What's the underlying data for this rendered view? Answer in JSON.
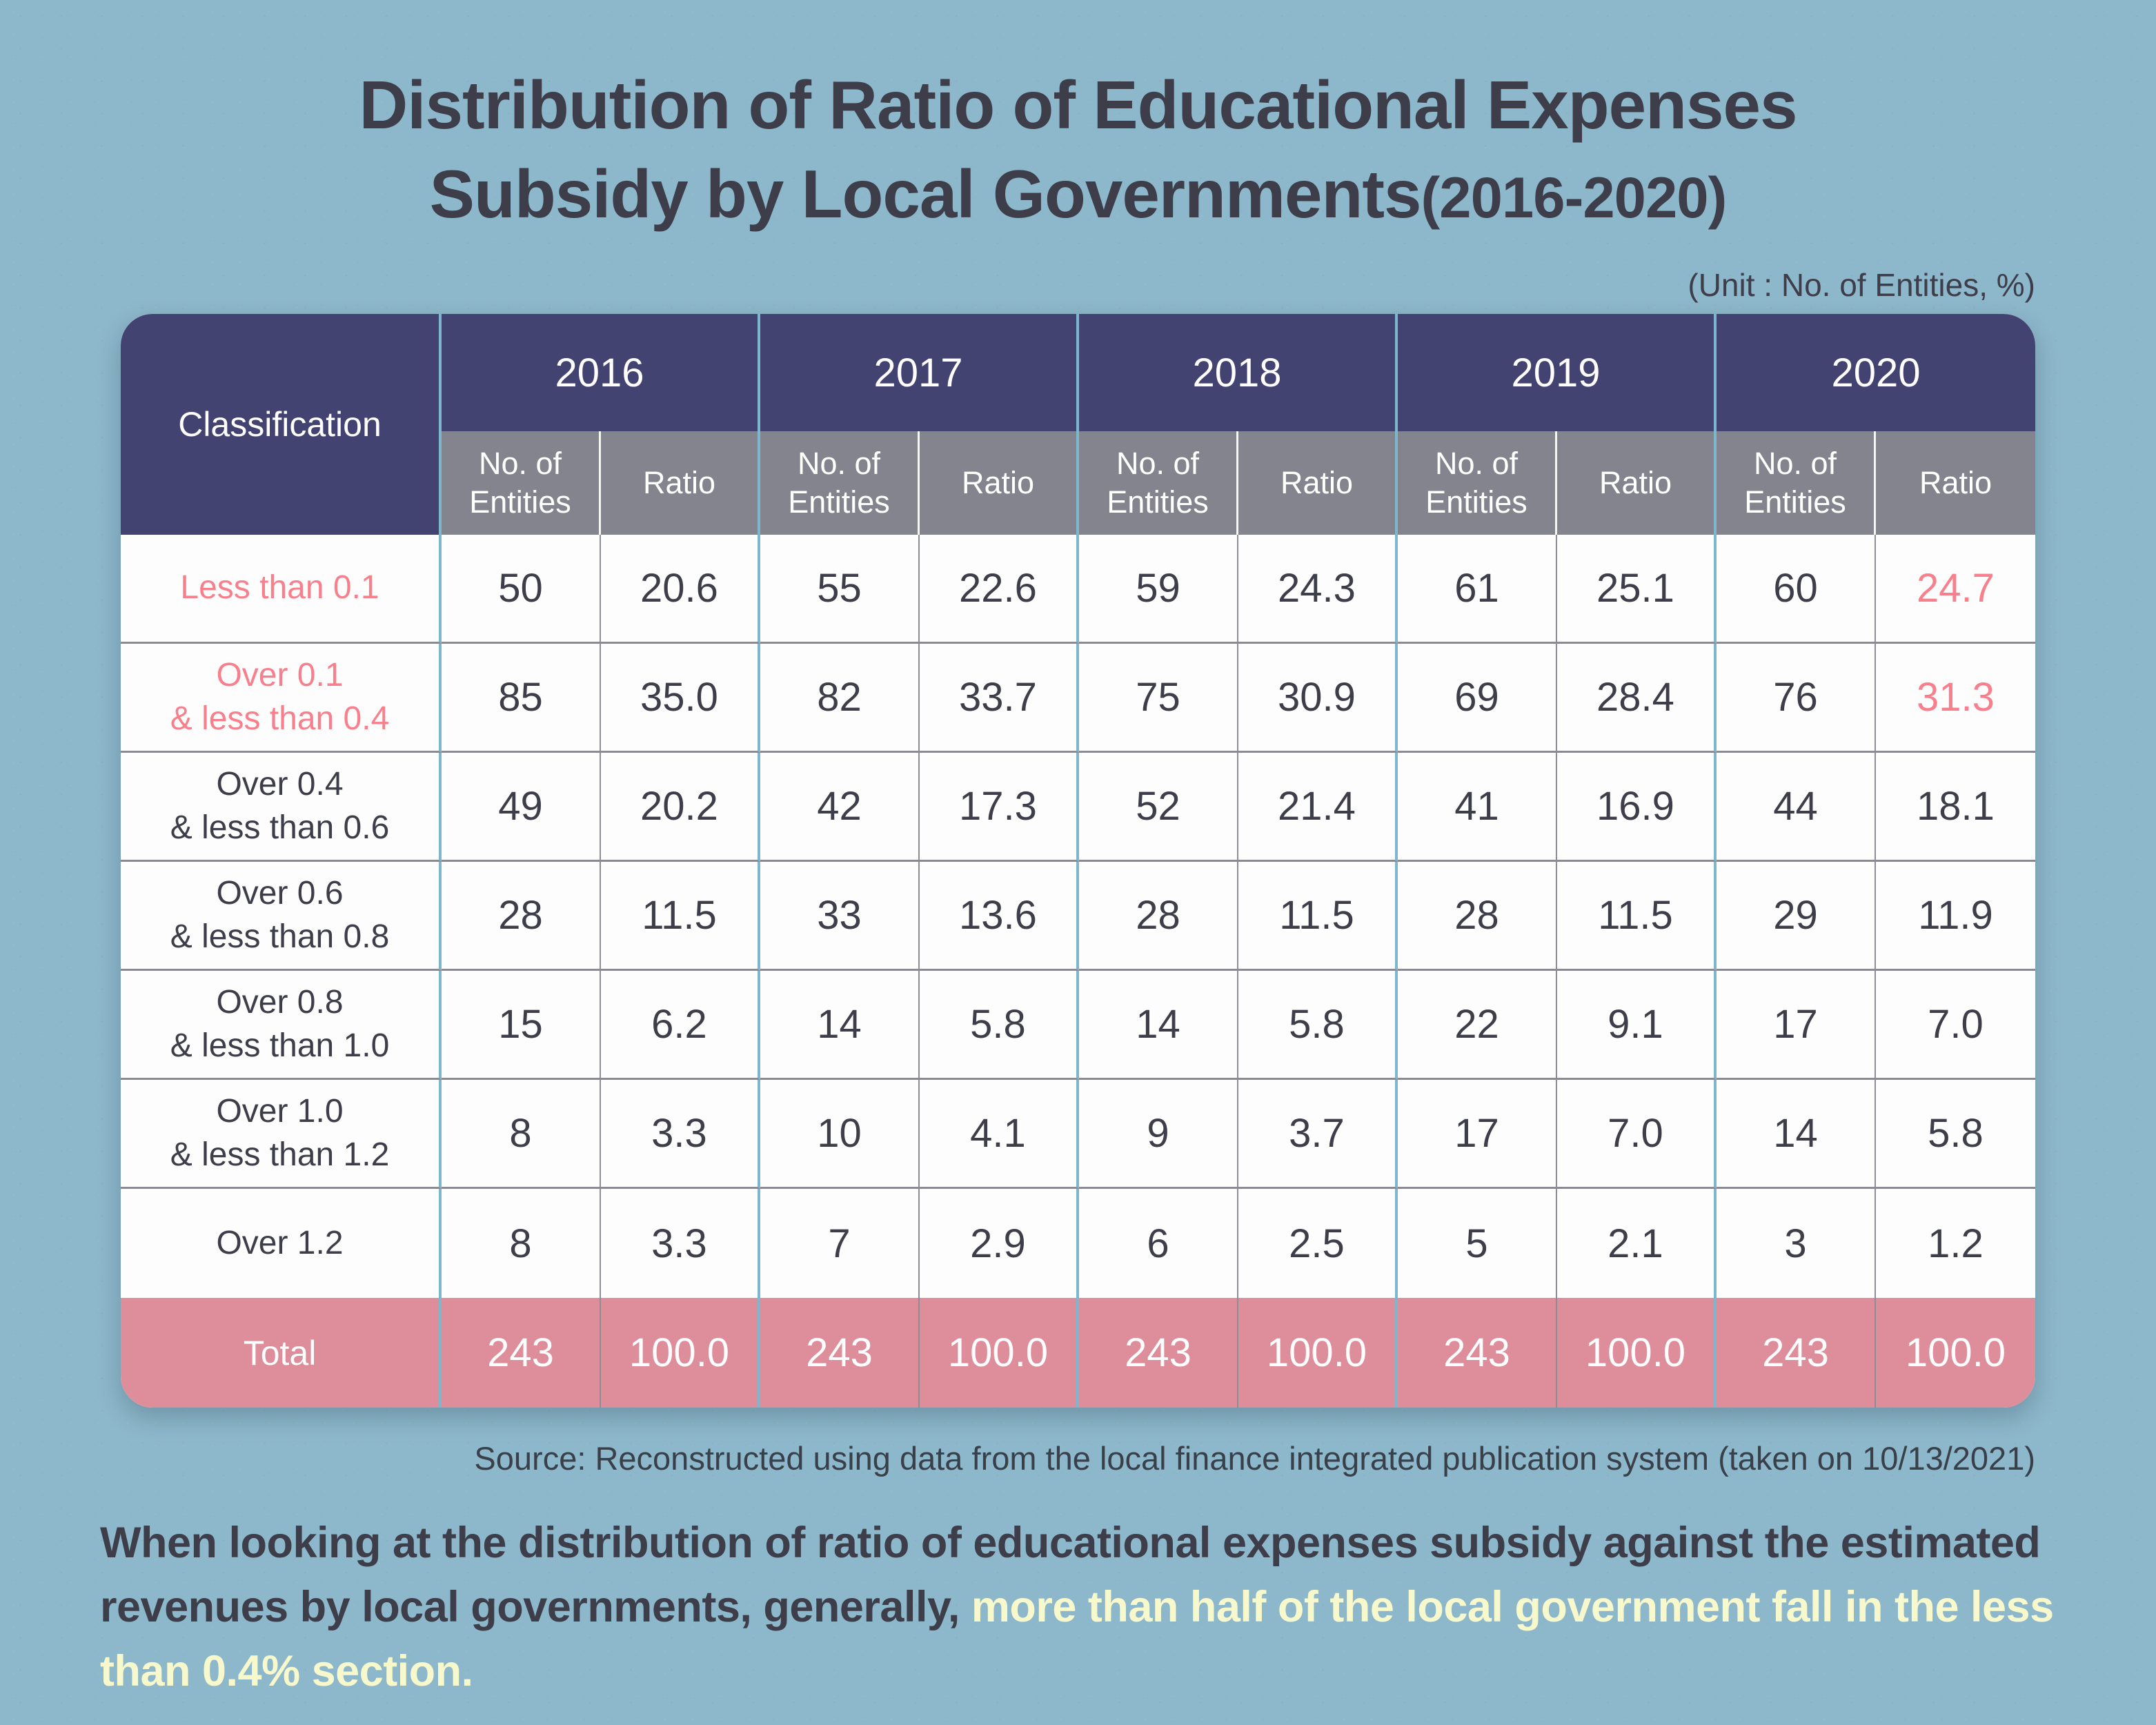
{
  "title": {
    "line1": "Distribution of Ratio of Educational Expenses",
    "line2_main": "Subsidy by Local Governments",
    "line2_paren": "(2016-2020)"
  },
  "unit_note": "(Unit : No. of Entities, %)",
  "table": {
    "classification_header": "Classification",
    "years": [
      "2016",
      "2017",
      "2018",
      "2019",
      "2020"
    ],
    "sub_headers": [
      "No. of\nEntities",
      "Ratio"
    ],
    "rows": [
      {
        "label": "Less than 0.1",
        "pink": true,
        "accent_last": true,
        "values": [
          "50",
          "20.6",
          "55",
          "22.6",
          "59",
          "24.3",
          "61",
          "25.1",
          "60",
          "24.7"
        ]
      },
      {
        "label": "Over 0.1\n& less than 0.4",
        "pink": true,
        "accent_last": true,
        "values": [
          "85",
          "35.0",
          "82",
          "33.7",
          "75",
          "30.9",
          "69",
          "28.4",
          "76",
          "31.3"
        ]
      },
      {
        "label": "Over 0.4\n& less than 0.6",
        "pink": false,
        "accent_last": false,
        "values": [
          "49",
          "20.2",
          "42",
          "17.3",
          "52",
          "21.4",
          "41",
          "16.9",
          "44",
          "18.1"
        ]
      },
      {
        "label": "Over 0.6\n& less than 0.8",
        "pink": false,
        "accent_last": false,
        "values": [
          "28",
          "11.5",
          "33",
          "13.6",
          "28",
          "11.5",
          "28",
          "11.5",
          "29",
          "11.9"
        ]
      },
      {
        "label": "Over 0.8\n& less than 1.0",
        "pink": false,
        "accent_last": false,
        "values": [
          "15",
          "6.2",
          "14",
          "5.8",
          "14",
          "5.8",
          "22",
          "9.1",
          "17",
          "7.0"
        ]
      },
      {
        "label": "Over 1.0\n& less than 1.2",
        "pink": false,
        "accent_last": false,
        "values": [
          "8",
          "3.3",
          "10",
          "4.1",
          "9",
          "3.7",
          "17",
          "7.0",
          "14",
          "5.8"
        ]
      },
      {
        "label": "Over 1.2",
        "pink": false,
        "accent_last": false,
        "values": [
          "8",
          "3.3",
          "7",
          "2.9",
          "6",
          "2.5",
          "5",
          "2.1",
          "3",
          "1.2"
        ]
      }
    ],
    "total": {
      "label": "Total",
      "values": [
        "243",
        "100.0",
        "243",
        "100.0",
        "243",
        "100.0",
        "243",
        "100.0",
        "243",
        "100.0"
      ]
    }
  },
  "source": "Source: Reconstructed using data from the local finance integrated publication system (taken on 10/13/2021)",
  "caption": {
    "normal": "When looking at the distribution of ratio of educational expenses subsidy against the estimated revenues by local governments, generally, ",
    "highlight": "more than half of the local government fall in the less than 0.4% section."
  },
  "colors": {
    "background": "#8db7ca",
    "header_navy": "#434372",
    "subheader_gray": "#84848e",
    "total_pink": "#de8e9a",
    "accent_pink": "#f8808d",
    "text_dark": "#3d3e4a",
    "highlight_yellow": "#f7f8cc",
    "divider_blue": "#7db7cd",
    "divider_gray": "#8a8a92",
    "row_white": "#fdfdfd"
  },
  "chart_data": {
    "type": "table",
    "title": "Distribution of Ratio of Educational Expenses Subsidy by Local Governments(2016-2020)",
    "unit": "No. of Entities, %",
    "years": [
      2016,
      2017,
      2018,
      2019,
      2020
    ],
    "measures": [
      "No. of Entities",
      "Ratio"
    ],
    "rows": [
      {
        "classification": "Less than 0.1",
        "entities": [
          50,
          55,
          59,
          61,
          60
        ],
        "ratio": [
          20.6,
          22.6,
          24.3,
          25.1,
          24.7
        ]
      },
      {
        "classification": "Over 0.1 & less than 0.4",
        "entities": [
          85,
          82,
          75,
          69,
          76
        ],
        "ratio": [
          35.0,
          33.7,
          30.9,
          28.4,
          31.3
        ]
      },
      {
        "classification": "Over 0.4 & less than 0.6",
        "entities": [
          49,
          42,
          52,
          41,
          44
        ],
        "ratio": [
          20.2,
          17.3,
          21.4,
          16.9,
          18.1
        ]
      },
      {
        "classification": "Over 0.6 & less than 0.8",
        "entities": [
          28,
          33,
          28,
          28,
          29
        ],
        "ratio": [
          11.5,
          13.6,
          11.5,
          11.5,
          11.9
        ]
      },
      {
        "classification": "Over 0.8 & less than 1.0",
        "entities": [
          15,
          14,
          14,
          22,
          17
        ],
        "ratio": [
          6.2,
          5.8,
          5.8,
          9.1,
          7.0
        ]
      },
      {
        "classification": "Over 1.0 & less than 1.2",
        "entities": [
          8,
          10,
          9,
          17,
          14
        ],
        "ratio": [
          3.3,
          4.1,
          3.7,
          7.0,
          5.8
        ]
      },
      {
        "classification": "Over 1.2",
        "entities": [
          8,
          7,
          6,
          5,
          3
        ],
        "ratio": [
          3.3,
          2.9,
          2.5,
          2.1,
          1.2
        ]
      },
      {
        "classification": "Total",
        "entities": [
          243,
          243,
          243,
          243,
          243
        ],
        "ratio": [
          100.0,
          100.0,
          100.0,
          100.0,
          100.0
        ]
      }
    ]
  }
}
